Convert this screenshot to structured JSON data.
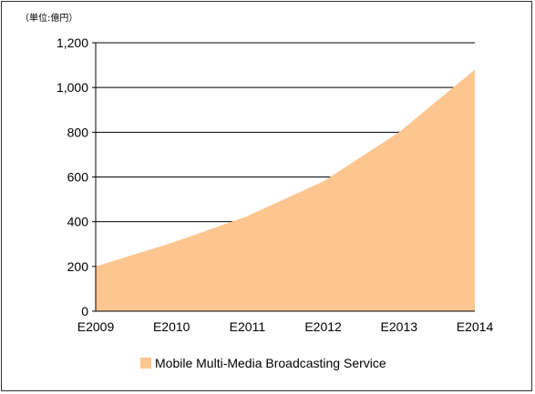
{
  "chart_data": {
    "type": "area",
    "unit_label": "（単位:億円）",
    "categories": [
      "E2009",
      "E2010",
      "E2011",
      "E2012",
      "E2013",
      "E2014"
    ],
    "series": [
      {
        "name": "Mobile Multi-Media Broadcasting Service",
        "values": [
          200,
          305,
          425,
          580,
          800,
          1080
        ]
      }
    ],
    "ylim": [
      0,
      1200
    ],
    "yticks": [
      "0",
      "200",
      "400",
      "600",
      "800",
      "1,000",
      "1,200"
    ],
    "grid": true,
    "legend_position": "bottom",
    "colors": {
      "area": "#FDC690",
      "grid": "#000000",
      "axis": "#000000"
    }
  }
}
